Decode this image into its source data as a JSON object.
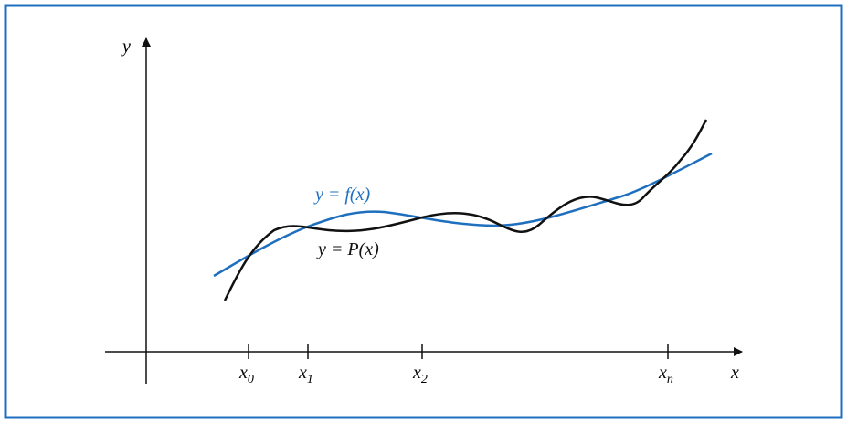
{
  "axes": {
    "y_label": "y",
    "x_label": "x"
  },
  "ticks": [
    {
      "base": "x",
      "sub": "0"
    },
    {
      "base": "x",
      "sub": "1"
    },
    {
      "base": "x",
      "sub": "2"
    },
    {
      "base": "x",
      "sub": "n"
    }
  ],
  "curves": {
    "f_label": "y = f(x)",
    "p_label": "y = P(x)"
  }
}
